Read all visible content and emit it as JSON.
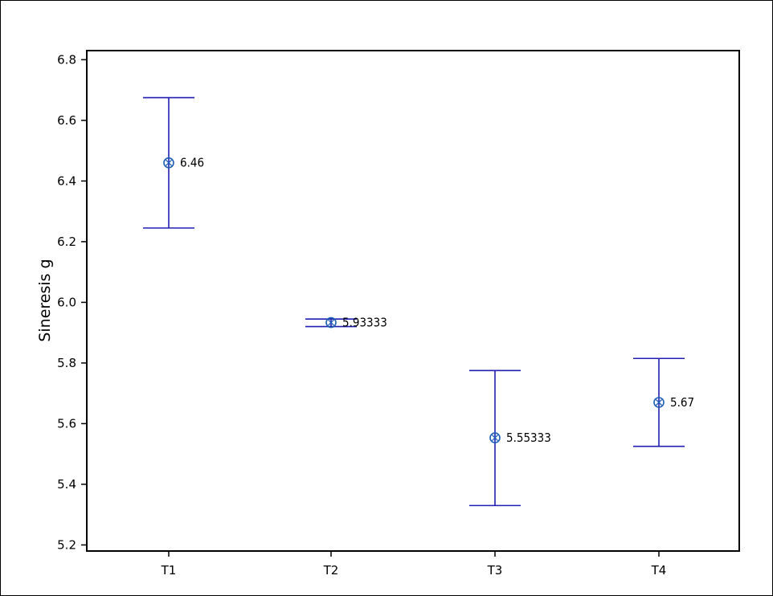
{
  "chart_data": {
    "type": "interval",
    "title": "",
    "xlabel": "",
    "ylabel": "Sineresis g",
    "categories": [
      "T1",
      "T2",
      "T3",
      "T4"
    ],
    "means": [
      6.46,
      5.93333,
      5.55333,
      5.67
    ],
    "mean_labels": [
      "6.46",
      "5.93333",
      "5.55333",
      "5.67"
    ],
    "lower": [
      6.245,
      5.92,
      5.33,
      5.525
    ],
    "upper": [
      6.675,
      5.945,
      5.775,
      5.815
    ],
    "ylim": [
      5.18,
      6.83
    ],
    "yticks": [
      5.2,
      5.4,
      5.6,
      5.8,
      6.0,
      6.2,
      6.4,
      6.6,
      6.8
    ],
    "ytick_labels": [
      "5.2",
      "5.4",
      "5.6",
      "5.8",
      "6.0",
      "6.2",
      "6.4",
      "6.6",
      "6.8"
    ],
    "grid": false,
    "legend": "none",
    "colors": {
      "interval": "#1f1fb4",
      "marker": "#1f5fb4",
      "axes": "#000000",
      "text": "#000000",
      "background": "#ffffff"
    }
  }
}
